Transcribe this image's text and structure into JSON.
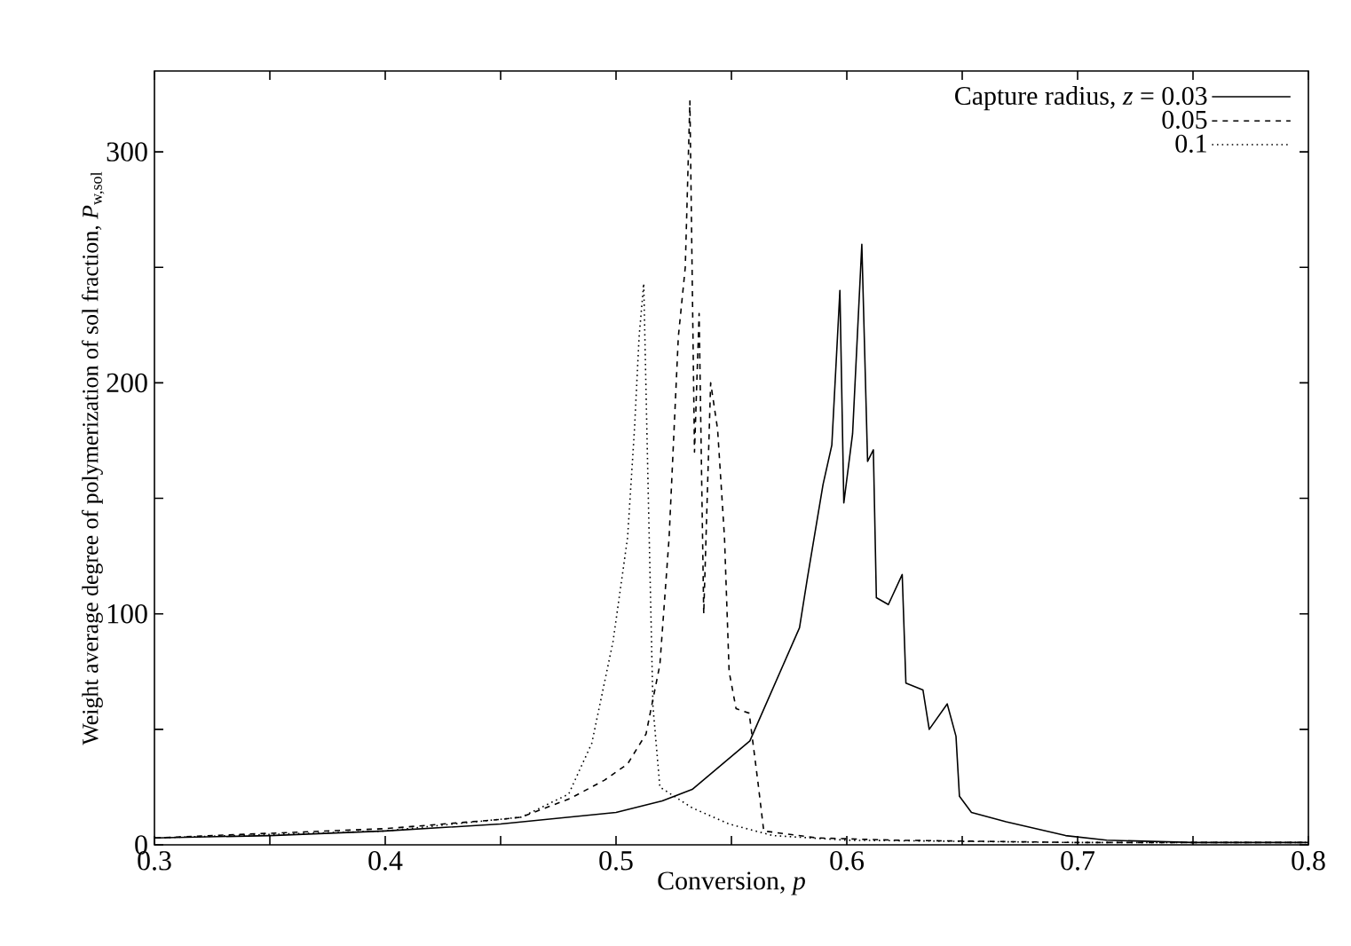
{
  "chart_data": {
    "type": "line",
    "xlabel": "Conversion, *p*",
    "ylabel": "Weight average degree of polymerization of sol fraction, *P*$_{w,sol}$",
    "xlim": [
      0.3,
      0.8
    ],
    "ylim": [
      0,
      335
    ],
    "xticks": [
      0.3,
      {
        "value": 0.35,
        "label": null
      },
      0.4,
      {
        "value": 0.45,
        "label": null
      },
      0.5,
      {
        "value": 0.55,
        "label": null
      },
      0.6,
      {
        "value": 0.65,
        "label": null
      },
      0.7,
      {
        "value": 0.75,
        "label": null
      },
      0.8
    ],
    "yticks": [
      0,
      {
        "value": 50,
        "label": null
      },
      100,
      {
        "value": 150,
        "label": null
      },
      200,
      {
        "value": 250,
        "label": null
      },
      300
    ],
    "legend": "top right",
    "grid": false,
    "series": [
      {
        "name": "Capture radius, *z* = 0.03",
        "color": "#000000",
        "line_style": "solid",
        "x": [
          0.3,
          0.35,
          0.4,
          0.45,
          0.5,
          0.52,
          0.533,
          0.558,
          0.5795,
          0.583,
          0.5897,
          0.5935,
          0.597,
          0.5987,
          0.6025,
          0.6065,
          0.609,
          0.6115,
          0.6128,
          0.618,
          0.624,
          0.6256,
          0.633,
          0.6357,
          0.6435,
          0.6473,
          0.6488,
          0.654,
          0.669,
          0.6948,
          0.7126,
          0.75,
          0.8
        ],
        "values": [
          3,
          4,
          6,
          9,
          14,
          19,
          24,
          45,
          94,
          116,
          156,
          173,
          240,
          148,
          178,
          260,
          166,
          171,
          107,
          104,
          117,
          70,
          67,
          50,
          61,
          47,
          21,
          14,
          10,
          4,
          2,
          1,
          1
        ]
      },
      {
        "name": "0.05",
        "color": "#000000",
        "line_style": "dashed",
        "x": [
          0.3,
          0.4,
          0.45,
          0.459,
          0.48,
          0.495,
          0.505,
          0.513,
          0.519,
          0.523,
          0.527,
          0.53,
          0.532,
          0.534,
          0.536,
          0.538,
          0.541,
          0.544,
          0.547,
          0.549,
          0.552,
          0.5577,
          0.5615,
          0.564,
          0.587,
          0.621,
          0.7,
          0.8
        ],
        "values": [
          3,
          7,
          11,
          12,
          20,
          28,
          35,
          48,
          78,
          133,
          220,
          250,
          322,
          170,
          230,
          100,
          200,
          180,
          133,
          75,
          59,
          57,
          27,
          6,
          3,
          2,
          1,
          1
        ]
      },
      {
        "name": "0.1",
        "color": "#000000",
        "line_style": "dotted",
        "x": [
          0.3,
          0.4,
          0.459,
          0.4795,
          0.4895,
          0.4987,
          0.505,
          0.508,
          0.51,
          0.512,
          0.514,
          0.516,
          0.519,
          0.533,
          0.549,
          0.568,
          0.6,
          0.7,
          0.8
        ],
        "values": [
          3,
          6,
          12,
          22,
          44,
          88,
          133,
          180,
          220,
          243,
          150,
          60,
          25,
          16,
          9,
          4,
          2,
          1,
          1
        ]
      }
    ]
  }
}
